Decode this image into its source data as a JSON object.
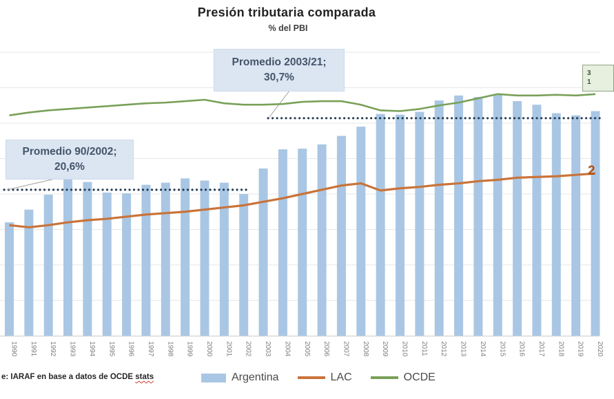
{
  "title": "Presión tributaria comparada",
  "subtitle": "% del PBI",
  "annotations": {
    "promedio_2003_21": {
      "line1": "Promedio 2003/21;",
      "line2": "30,7%"
    },
    "promedio_90_2002": {
      "line1": "Promedio 90/2002;",
      "line2": "20,6%"
    }
  },
  "end_labels": {
    "lac_partial": "2",
    "ocde_partial_line1": "3",
    "ocde_partial_line2": "1"
  },
  "legend": [
    {
      "label": "Argentina",
      "type": "bar"
    },
    {
      "label": "LAC",
      "type": "line"
    },
    {
      "label": "OCDE",
      "type": "line"
    }
  ],
  "source": {
    "prefix": "e: IARAF en base a datos de OCDE ",
    "misspelled_word": "stats"
  },
  "colors": {
    "argentina_bar": "#a9c7e4",
    "lac_line": "#c9733a",
    "ocde_line": "#79a058",
    "reference_dots": "#233a52",
    "leader_line": "#9e9e9e",
    "gridline": "#e7e7e7",
    "axis_line": "#d2d2d2",
    "axis_text": "#7f7f7f",
    "annotation_bg": "#dce6f2",
    "annotation_text": "#44546a",
    "ocde_end_box_bg": "#e7efdf",
    "lac_end_label_color": "#b05214"
  },
  "chart_data": {
    "type": "bar",
    "subtype": "bar-line-combo",
    "title": "Presión tributaria comparada",
    "subtitle_unit": "% del PBI",
    "xlabel": "",
    "ylabel": "",
    "ylim": [
      0,
      40
    ],
    "grid_step": 5,
    "grid_on": true,
    "yaxis_labels_visible": false,
    "legend_position": "bottom",
    "categories": [
      "1990",
      "1991",
      "1992",
      "1993",
      "1994",
      "1995",
      "1996",
      "1997",
      "1998",
      "1999",
      "2000",
      "2001",
      "2002",
      "2003",
      "2004",
      "2005",
      "2006",
      "2007",
      "2008",
      "2009",
      "2010",
      "2011",
      "2012",
      "2013",
      "2014",
      "2015",
      "2016",
      "2017",
      "2018",
      "2019",
      "2020"
    ],
    "series": [
      {
        "name": "Argentina",
        "type": "bar",
        "color": "#a9c7e4",
        "values": [
          16.0,
          17.8,
          19.9,
          22.1,
          21.7,
          20.2,
          20.1,
          21.3,
          21.6,
          22.2,
          21.9,
          21.6,
          20.0,
          23.6,
          26.3,
          26.4,
          27.0,
          28.2,
          29.5,
          31.3,
          31.2,
          31.6,
          33.2,
          33.9,
          33.7,
          34.1,
          33.1,
          32.6,
          31.4,
          31.1,
          31.7
        ]
      },
      {
        "name": "LAC",
        "type": "line",
        "color": "#c9733a",
        "values": [
          15.6,
          15.3,
          15.6,
          16.0,
          16.3,
          16.5,
          16.8,
          17.1,
          17.3,
          17.5,
          17.8,
          18.1,
          18.4,
          18.9,
          19.4,
          20.0,
          20.6,
          21.2,
          21.5,
          20.5,
          20.8,
          21.0,
          21.3,
          21.5,
          21.8,
          22.0,
          22.3,
          22.4,
          22.5,
          22.7,
          22.9
        ]
      },
      {
        "name": "OCDE",
        "type": "line",
        "color": "#79a058",
        "values": [
          31.1,
          31.5,
          31.8,
          32.0,
          32.2,
          32.4,
          32.6,
          32.8,
          32.9,
          33.1,
          33.3,
          32.8,
          32.6,
          32.6,
          32.7,
          33.0,
          33.1,
          33.1,
          32.6,
          31.8,
          31.7,
          32.0,
          32.5,
          32.9,
          33.5,
          34.1,
          33.9,
          33.9,
          34.0,
          33.9,
          34.1
        ]
      }
    ],
    "reference_lines": [
      {
        "label": "Promedio 90/2002",
        "value": 20.6,
        "span_years": [
          "1990",
          "2002"
        ]
      },
      {
        "label": "Promedio 2003/21",
        "value": 30.7,
        "span_years": [
          "2003",
          "2021"
        ]
      }
    ]
  }
}
